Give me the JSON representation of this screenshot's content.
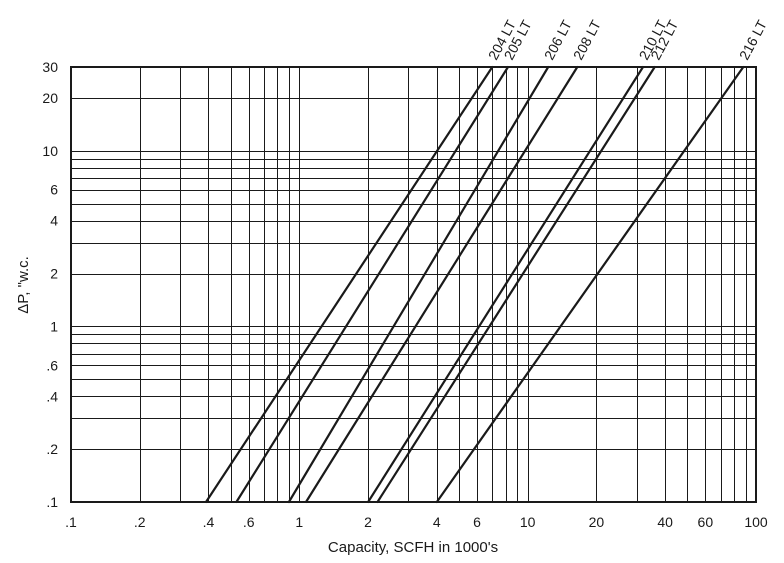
{
  "chart_data": {
    "type": "line",
    "title": "",
    "xlabel": "Capacity, SCFH in 1000's",
    "ylabel": "ΔP, \"w.c.",
    "xscale": "log",
    "yscale": "log",
    "xlim": [
      0.1,
      100
    ],
    "ylim": [
      0.1,
      30
    ],
    "grid": true,
    "legend": "series labels at top end of each line",
    "x_ticks": [
      {
        "value": 0.1,
        "label": ".1"
      },
      {
        "value": 0.2,
        "label": ".2"
      },
      {
        "value": 0.4,
        "label": ".4"
      },
      {
        "value": 0.6,
        "label": ".6"
      },
      {
        "value": 1,
        "label": "1"
      },
      {
        "value": 2,
        "label": "2"
      },
      {
        "value": 4,
        "label": "4"
      },
      {
        "value": 6,
        "label": "6"
      },
      {
        "value": 10,
        "label": "10"
      },
      {
        "value": 20,
        "label": "20"
      },
      {
        "value": 40,
        "label": "40"
      },
      {
        "value": 60,
        "label": "60"
      },
      {
        "value": 100,
        "label": "100"
      }
    ],
    "y_ticks": [
      {
        "value": 0.1,
        "label": ".1"
      },
      {
        "value": 0.2,
        "label": ".2"
      },
      {
        "value": 0.4,
        "label": ".4"
      },
      {
        "value": 0.6,
        "label": ".6"
      },
      {
        "value": 1,
        "label": "1"
      },
      {
        "value": 2,
        "label": "2"
      },
      {
        "value": 4,
        "label": "4"
      },
      {
        "value": 6,
        "label": "6"
      },
      {
        "value": 10,
        "label": "10"
      },
      {
        "value": 20,
        "label": "20"
      },
      {
        "value": 30,
        "label": "30"
      }
    ],
    "x_gridlines": [
      0.1,
      0.2,
      0.3,
      0.4,
      0.5,
      0.6,
      0.7,
      0.8,
      0.9,
      1,
      2,
      3,
      4,
      5,
      6,
      7,
      8,
      9,
      10,
      20,
      30,
      40,
      50,
      60,
      70,
      80,
      90,
      100
    ],
    "y_gridlines": [
      0.1,
      0.2,
      0.3,
      0.4,
      0.5,
      0.6,
      0.7,
      0.8,
      0.9,
      1,
      2,
      3,
      4,
      5,
      6,
      7,
      8,
      9,
      10,
      20,
      30
    ],
    "series": [
      {
        "name": "204 LT",
        "x": [
          0.39,
          7.0
        ],
        "y": [
          0.1,
          30
        ]
      },
      {
        "name": "205 LT",
        "x": [
          0.53,
          8.2
        ],
        "y": [
          0.1,
          30
        ]
      },
      {
        "name": "206 LT",
        "x": [
          0.9,
          12.3
        ],
        "y": [
          0.1,
          30
        ]
      },
      {
        "name": "208 LT",
        "x": [
          1.07,
          16.5
        ],
        "y": [
          0.1,
          30
        ]
      },
      {
        "name": "210 LT",
        "x": [
          2.0,
          32.0
        ],
        "y": [
          0.1,
          30
        ]
      },
      {
        "name": "212 LT",
        "x": [
          2.2,
          36.0
        ],
        "y": [
          0.1,
          30
        ]
      },
      {
        "name": "216 LT",
        "x": [
          4.0,
          88.0
        ],
        "y": [
          0.1,
          30
        ]
      }
    ]
  }
}
